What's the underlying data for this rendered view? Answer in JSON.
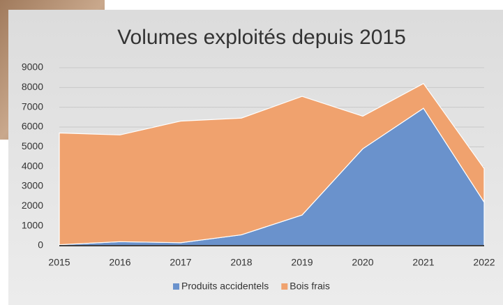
{
  "chart_data": {
    "type": "stacked-area",
    "title": "Volumes exploités depuis 2015",
    "x": [
      2015,
      2016,
      2017,
      2018,
      2019,
      2020,
      2021,
      2022
    ],
    "xlim": [
      2015,
      2022
    ],
    "xticks": [
      2015,
      2016,
      2017,
      2018,
      2019,
      2020,
      2021,
      2022
    ],
    "ylim": [
      0,
      9000
    ],
    "yticks": [
      0,
      1000,
      2000,
      3000,
      4000,
      5000,
      6000,
      7000,
      8000,
      9000
    ],
    "grid": true,
    "legend": "bottom",
    "series": [
      {
        "name": "Produits accidentels",
        "color": "#6a92cc",
        "values": [
          50,
          200,
          150,
          550,
          1550,
          4900,
          6950,
          2200
        ]
      },
      {
        "name": "Bois frais",
        "color": "#f0a26e",
        "values": [
          5650,
          5400,
          6150,
          5900,
          6000,
          1650,
          1250,
          1700
        ]
      }
    ]
  }
}
